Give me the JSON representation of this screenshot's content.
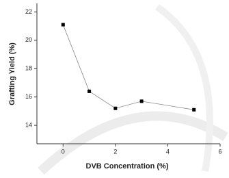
{
  "chart_data": {
    "type": "line",
    "x_label": "DVB Concentration (%)",
    "y_label": "Grafting Yield (%)",
    "x": [
      0,
      1,
      2,
      3,
      5
    ],
    "series": [
      {
        "name": "Grafting Yield",
        "color": "#000000",
        "values": [
          21.1,
          16.4,
          15.2,
          15.7,
          15.1
        ]
      }
    ],
    "xlim": [
      -1,
      6
    ],
    "xticks": [
      0,
      2,
      4,
      6
    ],
    "ylim": [
      12.7,
      22.6
    ],
    "yticks": [
      14,
      16,
      18,
      20,
      22
    ],
    "grid": false
  }
}
